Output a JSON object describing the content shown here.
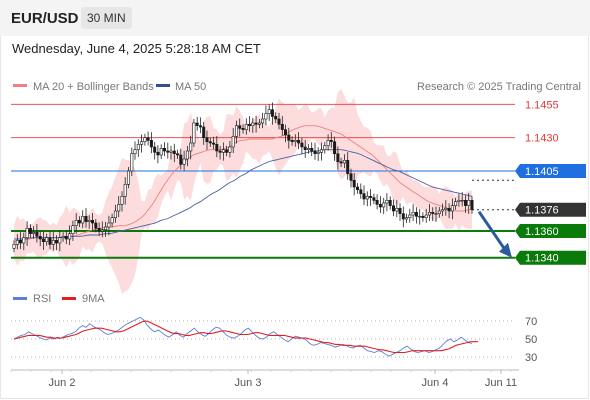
{
  "header": {
    "pair": "EUR/USD",
    "timeframe": "30 MIN"
  },
  "datetime": "Wednesday, June 4, 2025 5:28:18 AM CET",
  "legend": {
    "ma20_label": "MA 20 + Bollinger Bands",
    "ma50_label": "MA 50",
    "research": "Research © 2025 Trading Central"
  },
  "rsi_legend": {
    "rsi_label": "RSI",
    "ma9_label": "9MA"
  },
  "chart_data": [
    {
      "type": "candlestick",
      "title": "EUR/USD 30 MIN",
      "ylim": [
        1.1327,
        1.1462
      ],
      "x_ticks": [
        "Jun 2",
        "Jun 3",
        "Jun 4",
        "Jun 11"
      ],
      "price_levels": [
        {
          "value": 1.1455,
          "label": "1.1455",
          "role": "resistance",
          "color": "#e53935"
        },
        {
          "value": 1.143,
          "label": "1.1430",
          "role": "resistance",
          "color": "#e53935"
        },
        {
          "value": 1.1405,
          "label": "1.1405",
          "role": "pivot",
          "color": "#1f6fe0"
        },
        {
          "value": 1.1376,
          "label": "1.1376",
          "role": "last-price",
          "color": "#333333"
        },
        {
          "value": 1.136,
          "label": "1.1360",
          "role": "support",
          "color": "#0a7a0a"
        },
        {
          "value": 1.134,
          "label": "1.1340",
          "role": "support",
          "color": "#0a7a0a"
        }
      ],
      "forecast_arrow": {
        "from": 1.1376,
        "to": 1.134,
        "color": "#2a5b9c"
      },
      "colors": {
        "bollinger_band": "#fbd6d6",
        "ma20": "#f08080",
        "ma50": "#4a5fa8",
        "candle_up": "#1a1a1a",
        "candle_down": "#1a1a1a"
      },
      "close_series": [
        1.135,
        1.1353,
        1.1351,
        1.1355,
        1.1362,
        1.1358,
        1.1359,
        1.1356,
        1.1354,
        1.1352,
        1.1355,
        1.135,
        1.1353,
        1.1351,
        1.1355,
        1.1356,
        1.1354,
        1.1358,
        1.1364,
        1.1368,
        1.1366,
        1.1371,
        1.1367,
        1.1368,
        1.1366,
        1.1362,
        1.136,
        1.1361,
        1.1363,
        1.1366,
        1.137,
        1.1375,
        1.138,
        1.1386,
        1.1395,
        1.1405,
        1.1418,
        1.1421,
        1.1425,
        1.1427,
        1.143,
        1.1428,
        1.1423,
        1.1419,
        1.1417,
        1.1422,
        1.142,
        1.1419,
        1.142,
        1.1418,
        1.1417,
        1.141,
        1.1414,
        1.142,
        1.1426,
        1.1441,
        1.1439,
        1.1438,
        1.143,
        1.1427,
        1.1426,
        1.1425,
        1.142,
        1.1419,
        1.1421,
        1.1419,
        1.1423,
        1.1431,
        1.1439,
        1.1437,
        1.1436,
        1.144,
        1.1439,
        1.1441,
        1.144,
        1.1441,
        1.1444,
        1.1448,
        1.1451,
        1.1446,
        1.1444,
        1.144,
        1.1436,
        1.1432,
        1.1428,
        1.1427,
        1.1428,
        1.1426,
        1.1423,
        1.1421,
        1.1422,
        1.142,
        1.1418,
        1.1419,
        1.1421,
        1.1424,
        1.1428,
        1.1427,
        1.1418,
        1.1412,
        1.1411,
        1.1413,
        1.1403,
        1.1398,
        1.1393,
        1.1391,
        1.1388,
        1.1384,
        1.1386,
        1.1385,
        1.1383,
        1.138,
        1.1378,
        1.1381,
        1.1383,
        1.1379,
        1.1375,
        1.1377,
        1.1373,
        1.1369,
        1.137,
        1.1372,
        1.1374,
        1.1371,
        1.1371,
        1.137,
        1.1372,
        1.1374,
        1.1373,
        1.1373,
        1.1375,
        1.1376,
        1.1377,
        1.1375,
        1.1379,
        1.1382,
        1.1383,
        1.1383,
        1.1379,
        1.1383,
        1.1376
      ],
      "ma20_series": [
        1.1352,
        1.1353,
        1.1353,
        1.1354,
        1.1354,
        1.1355,
        1.1355,
        1.1355,
        1.1355,
        1.1355,
        1.1355,
        1.1355,
        1.1355,
        1.1356,
        1.1356,
        1.1356,
        1.1357,
        1.1358,
        1.1359,
        1.136,
        1.1361,
        1.1362,
        1.1362,
        1.1363,
        1.1363,
        1.1363,
        1.1364,
        1.1364,
        1.1364,
        1.1365,
        1.1366,
        1.1368,
        1.137,
        1.1373,
        1.1377,
        1.1381,
        1.1386,
        1.1391,
        1.1396,
        1.14,
        1.1404,
        1.1407,
        1.141,
        1.1413,
        1.1415,
        1.1417,
        1.1418,
        1.1419,
        1.142,
        1.1421,
        1.1421,
        1.1421,
        1.1421,
        1.1422,
        1.1423,
        1.1425,
        1.1427,
        1.1428,
        1.1428,
        1.1429,
        1.1429,
        1.1429,
        1.1429,
        1.1429,
        1.1429,
        1.1429,
        1.143,
        1.1431,
        1.1432,
        1.1434,
        1.1436,
        1.1437,
        1.1438,
        1.1439,
        1.1439,
        1.1439,
        1.1439,
        1.1438,
        1.1437,
        1.1436,
        1.1435,
        1.1434,
        1.1433,
        1.1431,
        1.1429,
        1.1427,
        1.1425,
        1.1423,
        1.1421,
        1.1419,
        1.1417,
        1.1414,
        1.1411,
        1.1408,
        1.1405,
        1.1402,
        1.1399,
        1.1396,
        1.1394,
        1.1392,
        1.139,
        1.1388,
        1.1386,
        1.1384,
        1.1382,
        1.1381,
        1.138,
        1.1379,
        1.1378,
        1.1377,
        1.1376,
        1.1375,
        1.1375,
        1.1375,
        1.1376,
        1.1376
      ],
      "ma50_series": [
        1.1354,
        1.1354,
        1.1354,
        1.1355,
        1.1355,
        1.1355,
        1.1355,
        1.1355,
        1.1355,
        1.1355,
        1.1356,
        1.1356,
        1.1356,
        1.1357,
        1.1357,
        1.1357,
        1.1358,
        1.1358,
        1.1359,
        1.136,
        1.1361,
        1.1362,
        1.1363,
        1.1364,
        1.1365,
        1.1366,
        1.1368,
        1.1369,
        1.1371,
        1.1373,
        1.1375,
        1.1377,
        1.138,
        1.1382,
        1.1385,
        1.1388,
        1.139,
        1.1393,
        1.1396,
        1.1398,
        1.1401,
        1.1403,
        1.1406,
        1.1408,
        1.141,
        1.1412,
        1.1413,
        1.1414,
        1.1415,
        1.1416,
        1.1417,
        1.1418,
        1.1419,
        1.142,
        1.142,
        1.1421,
        1.1421,
        1.1421,
        1.1421,
        1.142,
        1.1419,
        1.1418,
        1.1416,
        1.1414,
        1.1412,
        1.141,
        1.1408,
        1.1406,
        1.1405,
        1.1403,
        1.1401,
        1.1399,
        1.1397,
        1.1395,
        1.1393,
        1.1392,
        1.1391,
        1.139,
        1.1389,
        1.1388,
        1.1387,
        1.1386
      ],
      "bollinger_width": 0.0011
    },
    {
      "type": "line",
      "title": "RSI",
      "ylim": [
        20,
        80
      ],
      "y_ticks": [
        70,
        50,
        30
      ],
      "series": [
        {
          "name": "RSI",
          "color": "#5c7fd6",
          "values": [
            50,
            52,
            54,
            55,
            58,
            56,
            54,
            52,
            50,
            49,
            51,
            50,
            52,
            51,
            53,
            55,
            56,
            58,
            62,
            65,
            63,
            67,
            64,
            62,
            60,
            57,
            55,
            56,
            58,
            60,
            63,
            66,
            68,
            70,
            72,
            74,
            71,
            65,
            61,
            58,
            60,
            57,
            54,
            52,
            55,
            58,
            54,
            52,
            56,
            59,
            62,
            58,
            55,
            53,
            56,
            60,
            63,
            62,
            58,
            54,
            52,
            51,
            53,
            56,
            60,
            62,
            58,
            54,
            51,
            50,
            52,
            56,
            58,
            55,
            52,
            49,
            47,
            50,
            53,
            52,
            51,
            49,
            45,
            43,
            44,
            46,
            45,
            44,
            43,
            41,
            42,
            44,
            43,
            41,
            40,
            42,
            43,
            40,
            37,
            36,
            35,
            37,
            36,
            33,
            31,
            33,
            35,
            37,
            40,
            42,
            39,
            36,
            35,
            36,
            37,
            35,
            36,
            38,
            40,
            44,
            48,
            50,
            47,
            49,
            52,
            49,
            46,
            45
          ]
        },
        {
          "name": "9MA",
          "color": "#e02020",
          "values": [
            50,
            51,
            52,
            53,
            54,
            54,
            54,
            54,
            53,
            52,
            52,
            51,
            51,
            51,
            52,
            53,
            54,
            55,
            57,
            59,
            60,
            61,
            62,
            62,
            62,
            61,
            60,
            59,
            58,
            58,
            59,
            61,
            63,
            65,
            67,
            69,
            70,
            69,
            67,
            65,
            63,
            61,
            59,
            57,
            56,
            56,
            55,
            54,
            54,
            55,
            56,
            57,
            57,
            56,
            56,
            57,
            58,
            59,
            59,
            58,
            57,
            56,
            55,
            55,
            55,
            56,
            57,
            57,
            56,
            55,
            54,
            54,
            54,
            54,
            54,
            53,
            52,
            51,
            51,
            51,
            51,
            50,
            49,
            48,
            47,
            46,
            46,
            45,
            44,
            44,
            43,
            43,
            43,
            42,
            42,
            42,
            42,
            41,
            40,
            39,
            38,
            38,
            37,
            36,
            35,
            35,
            35,
            35,
            36,
            37,
            37,
            37,
            37,
            37,
            37,
            37,
            37,
            37,
            38,
            39,
            41,
            43,
            44,
            45,
            46,
            47,
            47,
            47
          ]
        }
      ]
    }
  ]
}
